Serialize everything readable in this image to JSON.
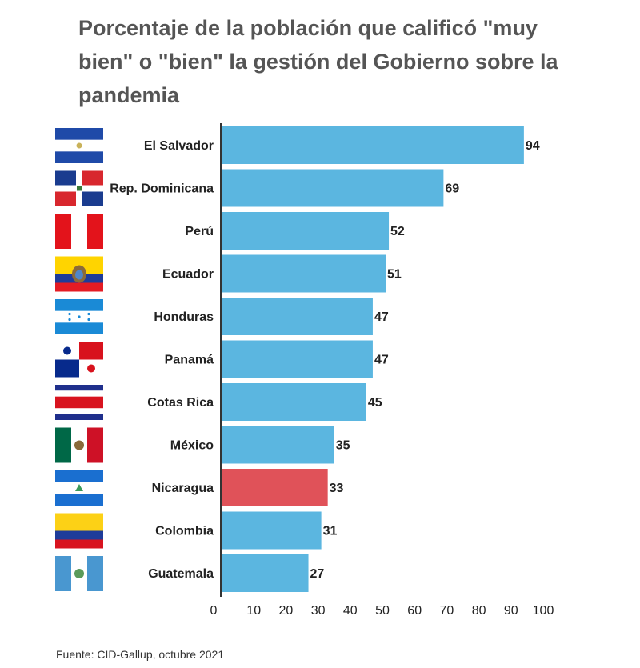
{
  "title": "Porcentaje de la población que calificó \"muy bien\" o \"bien\" la gestión del Gobierno sobre la pandemia",
  "source": "Fuente: CID-Gallup, octubre 2021",
  "colors": {
    "bar": "#5bb6e0",
    "highlight": "#e05259",
    "axis": "#333333",
    "text": "#222222",
    "title": "#555555"
  },
  "chart_data": {
    "type": "bar",
    "orientation": "horizontal",
    "categories": [
      "El Salvador",
      "Rep. Dominicana",
      "Perú",
      "Ecuador",
      "Honduras",
      "Panamá",
      "Cotas Rica",
      "México",
      "Nicaragua",
      "Colombia",
      "Guatemala"
    ],
    "values": [
      94,
      69,
      52,
      51,
      47,
      47,
      45,
      35,
      33,
      31,
      27
    ],
    "highlighted": [
      "Nicaragua"
    ],
    "flags": [
      "el-salvador-flag",
      "dominican-republic-flag",
      "peru-flag",
      "ecuador-flag",
      "honduras-flag",
      "panama-flag",
      "costa-rica-flag",
      "mexico-flag",
      "nicaragua-flag",
      "colombia-flag",
      "guatemala-flag"
    ],
    "xticks": [
      0,
      10,
      20,
      30,
      40,
      50,
      60,
      70,
      80,
      90,
      100
    ],
    "xlim": [
      0,
      100
    ],
    "grid": false
  }
}
